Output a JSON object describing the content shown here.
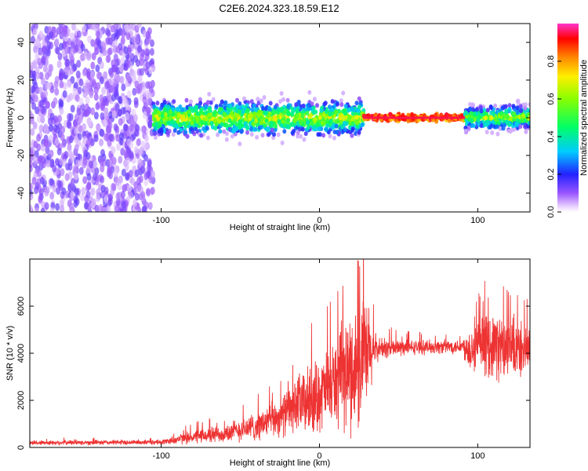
{
  "title": "C2E6.2024.323.18.59.E12",
  "chart_data": [
    {
      "type": "heatmap",
      "xlabel": "Height of straight line (km)",
      "ylabel": "Frequency (Hz)",
      "xlim": [
        -183,
        133
      ],
      "ylim": [
        -50,
        50
      ],
      "xticks": [
        -100,
        0,
        100
      ],
      "yticks": [
        -40,
        -20,
        0,
        20,
        40
      ],
      "colorbar": {
        "label": "Normalized spectral amplitude",
        "range": [
          0,
          1
        ],
        "ticks": [
          0.0,
          0.2,
          0.4,
          0.6,
          0.8
        ]
      },
      "regions": [
        {
          "x_range": [
            -183,
            -105
          ],
          "freq_spread": 50,
          "amplitude": 0.08
        },
        {
          "x_range": [
            -105,
            28
          ],
          "freq_spread": 8,
          "amplitude": 0.4
        },
        {
          "x_range": [
            28,
            92
          ],
          "freq_spread": 2,
          "amplitude": 0.95
        },
        {
          "x_range": [
            92,
            133
          ],
          "freq_spread": 6,
          "amplitude": 0.35
        }
      ]
    },
    {
      "type": "line",
      "xlabel": "Height of straight line (km)",
      "ylabel": "SNR (10 * v/v)",
      "xlim": [
        -183,
        133
      ],
      "ylim": [
        0,
        8000
      ],
      "xticks": [
        -100,
        0,
        100
      ],
      "yticks": [
        0,
        2000,
        4000,
        6000
      ],
      "series": [
        {
          "color": "#ee3333",
          "envelope": [
            {
              "x": -183,
              "mean": 200,
              "spread": 100
            },
            {
              "x": -100,
              "mean": 220,
              "spread": 100
            },
            {
              "x": -85,
              "mean": 400,
              "spread": 250
            },
            {
              "x": -60,
              "mean": 600,
              "spread": 400
            },
            {
              "x": -40,
              "mean": 900,
              "spread": 600
            },
            {
              "x": -25,
              "mean": 1300,
              "spread": 800
            },
            {
              "x": -15,
              "mean": 1800,
              "spread": 1200
            },
            {
              "x": -5,
              "mean": 2000,
              "spread": 1500
            },
            {
              "x": 5,
              "mean": 2500,
              "spread": 1600
            },
            {
              "x": 15,
              "mean": 3000,
              "spread": 2200
            },
            {
              "x": 25,
              "mean": 3500,
              "spread": 2800
            },
            {
              "x": 30,
              "mean": 3800,
              "spread": 2500
            },
            {
              "x": 36,
              "mean": 4200,
              "spread": 500
            },
            {
              "x": 60,
              "mean": 4250,
              "spread": 300
            },
            {
              "x": 90,
              "mean": 4300,
              "spread": 300
            },
            {
              "x": 95,
              "mean": 4200,
              "spread": 1000
            },
            {
              "x": 110,
              "mean": 4400,
              "spread": 1400
            },
            {
              "x": 120,
              "mean": 4100,
              "spread": 1400
            },
            {
              "x": 133,
              "mean": 4200,
              "spread": 1000
            }
          ]
        }
      ]
    }
  ]
}
